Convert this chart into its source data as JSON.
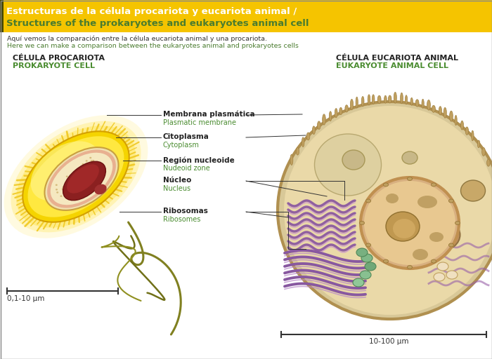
{
  "title_line1": "Estructuras de la célula procariota y eucariota animal /",
  "title_line2": "Structures of the prokaryotes and eukaryotes animal cell",
  "subtitle_line1": "Aquí vemos la comparación entre la célula eucariota animal y una procariota.",
  "subtitle_line2": "Here we can make a comparison between the eukaryotes animal and prokaryotes cells",
  "header_bg": "#F5C400",
  "header_text_white": "#FFFFFF",
  "header_text_green": "#4A7C2F",
  "subtitle_color1": "#333333",
  "subtitle_color2": "#4A7C2F",
  "label_left1": "CÉLULA PROCARIOTA",
  "label_left2": "PROKARYOTE CELL",
  "label_right1": "CÉLULA EUCARIOTA ANIMAL",
  "label_right2": "EUKARYOTE ANIMAL CELL",
  "labels_es": [
    "Membrana plasmática",
    "Citoplasma",
    "Región nucleoide",
    "Núcleo",
    "Ribosomas"
  ],
  "labels_en": [
    "Plasmatic membrane",
    "Cytoplasm",
    "Nudeoid zone",
    "Nucleus",
    "Ribosomes"
  ],
  "scale_left": "0,1-10 µm",
  "scale_right": "10-100 µm",
  "green_color": "#4A8C30",
  "dark_text": "#222222",
  "line_color": "#333333"
}
